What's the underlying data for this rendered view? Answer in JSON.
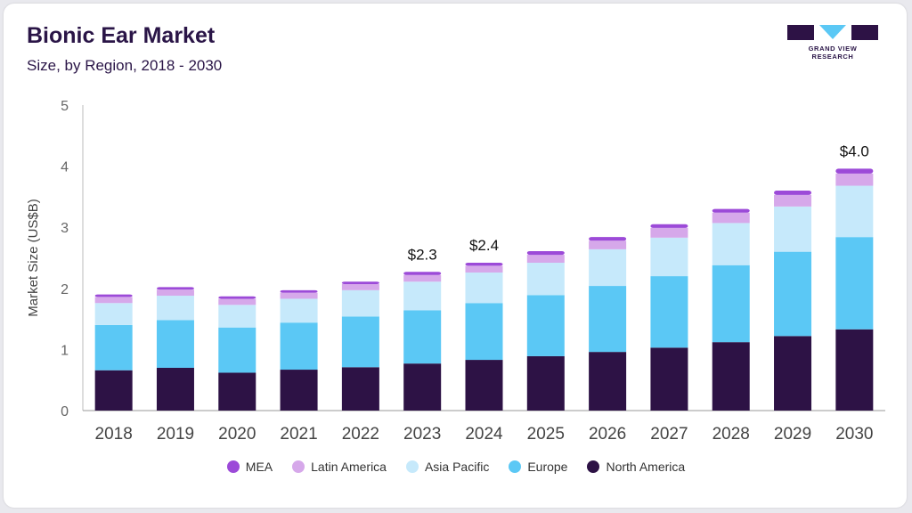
{
  "header": {
    "title": "Bionic Ear Market",
    "subtitle": "Size, by Region, 2018 - 2030"
  },
  "logo": {
    "text": "GRAND VIEW RESEARCH"
  },
  "chart_data": {
    "type": "bar",
    "stacked": true,
    "categories": [
      "2018",
      "2019",
      "2020",
      "2021",
      "2022",
      "2023",
      "2024",
      "2025",
      "2026",
      "2027",
      "2028",
      "2029",
      "2030"
    ],
    "series": [
      {
        "name": "North America",
        "color": "#2d1245",
        "values": [
          0.66,
          0.7,
          0.62,
          0.67,
          0.71,
          0.77,
          0.83,
          0.89,
          0.96,
          1.03,
          1.12,
          1.22,
          1.33
        ]
      },
      {
        "name": "Europe",
        "color": "#5bc8f5",
        "values": [
          0.74,
          0.78,
          0.74,
          0.77,
          0.83,
          0.87,
          0.93,
          1.0,
          1.08,
          1.17,
          1.26,
          1.38,
          1.51
        ]
      },
      {
        "name": "Asia Pacific",
        "color": "#c6e9fb",
        "values": [
          0.36,
          0.4,
          0.37,
          0.39,
          0.43,
          0.47,
          0.5,
          0.53,
          0.6,
          0.63,
          0.69,
          0.74,
          0.84
        ]
      },
      {
        "name": "Latin America",
        "color": "#d6a8ea",
        "values": [
          0.1,
          0.1,
          0.1,
          0.1,
          0.1,
          0.11,
          0.11,
          0.13,
          0.14,
          0.16,
          0.17,
          0.19,
          0.2
        ]
      },
      {
        "name": "MEA",
        "color": "#9c4ad8",
        "values": [
          0.04,
          0.04,
          0.04,
          0.04,
          0.04,
          0.05,
          0.05,
          0.06,
          0.06,
          0.06,
          0.06,
          0.07,
          0.08
        ]
      }
    ],
    "legend_order": [
      "MEA",
      "Latin America",
      "Asia Pacific",
      "Europe",
      "North America"
    ],
    "annotations": [
      {
        "category": "2023",
        "label": "$2.3"
      },
      {
        "category": "2024",
        "label": "$2.4"
      },
      {
        "category": "2030",
        "label": "$4.0"
      }
    ],
    "ylabel": "Market Size (US$B)",
    "xlabel": "",
    "ylim": [
      0,
      5
    ],
    "yticks": [
      "0",
      "1",
      "2",
      "3",
      "4",
      "5"
    ],
    "grid": false,
    "legend_position": "bottom"
  }
}
